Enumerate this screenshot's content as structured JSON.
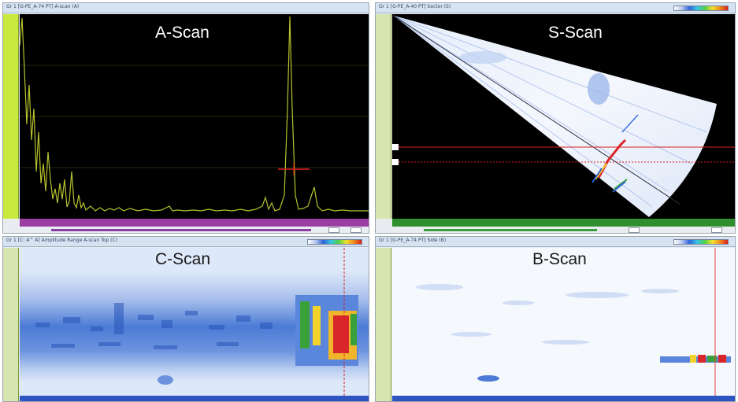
{
  "panels": {
    "ascan": {
      "label": "A-Scan",
      "window_title": "Gr 1 [G-PE_A-74 PT] A-scan (A)"
    },
    "sscan": {
      "label": "S-Scan",
      "window_title": "Gr 1 [G-PE_A-40 PT] Sector (S)"
    },
    "cscan": {
      "label": "C-Scan",
      "window_title": "Gr 1 [C: A^ A] Amplitude Range A-scan Top (C)"
    },
    "bscan": {
      "label": "B-Scan",
      "window_title": "Gr 1 [G-PE_A-74 PT] Side (B)"
    }
  },
  "colors": {
    "ascan_background": "#000000",
    "ascan_trace": "#b6c22d",
    "cursor": "#e02020",
    "purple_ruler": "#9a3ea2",
    "green_ruler": "#2f8f2f",
    "yellow_ruler": "#c9e93c"
  },
  "icons": [
    "color-palette-icon"
  ]
}
